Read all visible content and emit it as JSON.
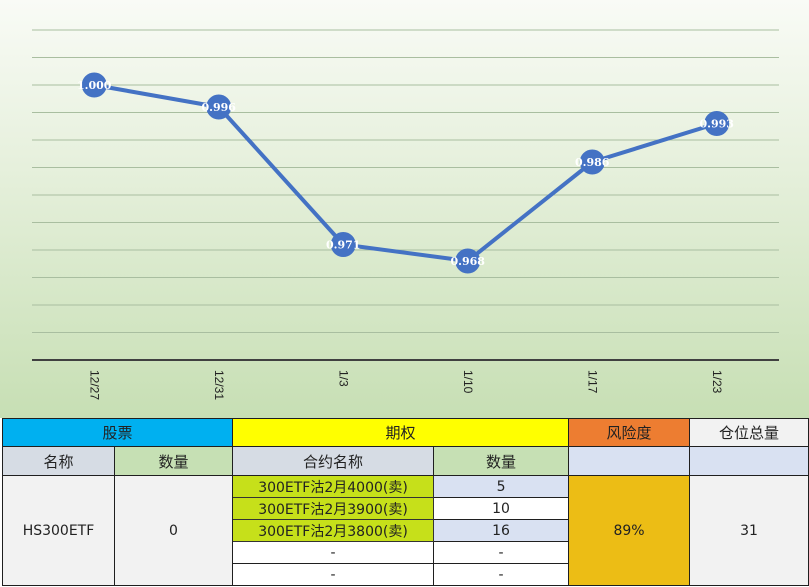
{
  "chart_data": {
    "type": "line",
    "categories": [
      "12/27",
      "12/31",
      "1/3",
      "1/10",
      "1/17",
      "1/23"
    ],
    "series": [
      {
        "values": [
          1.0,
          0.996,
          0.971,
          0.968,
          0.986,
          0.993
        ],
        "labels": [
          "1.000",
          "0.996",
          "0.971",
          "0.968",
          "0.986",
          "0.993"
        ]
      }
    ],
    "ylim": [
      0.95,
      1.01
    ],
    "grid": true,
    "color": "#4472c4"
  },
  "table": {
    "groups": {
      "stock": "股票",
      "options": "期权",
      "risk": "风险度",
      "position": "仓位总量"
    },
    "headers": {
      "name": "名称",
      "qty": "数量",
      "contract": "合约名称",
      "contract_qty": "数量"
    },
    "stock_name": "HS300ETF",
    "stock_qty": "0",
    "contracts": [
      {
        "name": "300ETF沽2月4000(卖)",
        "qty": "5"
      },
      {
        "name": "300ETF沽2月3900(卖)",
        "qty": "10"
      },
      {
        "name": "300ETF沽2月3800(卖)",
        "qty": "16"
      },
      {
        "name": "-",
        "qty": "-"
      },
      {
        "name": "-",
        "qty": "-"
      }
    ],
    "risk_value": "89%",
    "position_total": "31"
  }
}
